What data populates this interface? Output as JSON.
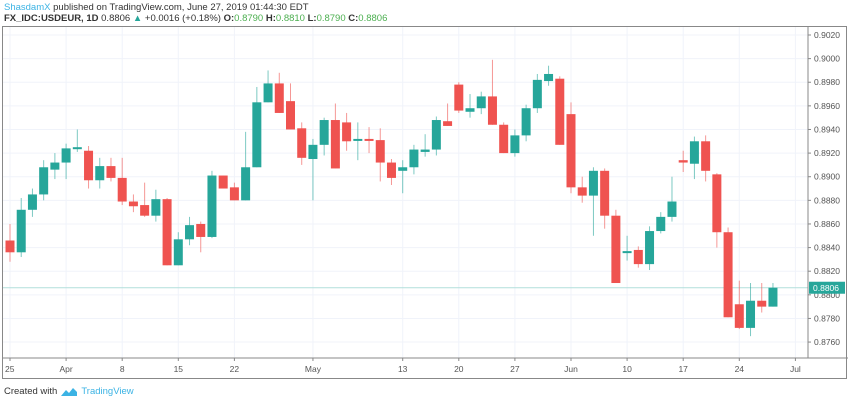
{
  "header": {
    "author": "ShasdamX",
    "published_text": " published on TradingView.com, June 27, 2019 01:44:30 EDT",
    "symbol": "FX_IDC:USDEUR, 1D",
    "last_price": "0.8806",
    "change_arrow": "▲",
    "change": "+0.0016 (+0.18%)",
    "o_label": "O:",
    "o_value": "0.8790",
    "h_label": "H:",
    "h_value": "0.8810",
    "l_label": "L:",
    "l_value": "0.8790",
    "c_label": "C:",
    "c_value": "0.8806"
  },
  "footer": {
    "created_with": "Created with",
    "brand": "TradingView"
  },
  "colors": {
    "up": "#26a69a",
    "down": "#ef5350",
    "grid": "#f0f3fa",
    "axis": "#888888",
    "text": "#555555",
    "brand": "#3bb3e4"
  },
  "chart_data": {
    "type": "candlestick",
    "title": "FX_IDC:USDEUR, 1D",
    "xlabel": "",
    "ylabel": "",
    "ylim": [
      0.8745,
      0.903
    ],
    "grid": true,
    "y_ticks": [
      "0.9020",
      "0.9000",
      "0.8980",
      "0.8960",
      "0.8940",
      "0.8920",
      "0.8900",
      "0.8880",
      "0.8860",
      "0.8840",
      "0.8820",
      "0.8800",
      "0.8780",
      "0.8760"
    ],
    "x_ticks": [
      {
        "label": "25",
        "index": 0
      },
      {
        "label": "Apr",
        "index": 5
      },
      {
        "label": "8",
        "index": 10
      },
      {
        "label": "15",
        "index": 15
      },
      {
        "label": "22",
        "index": 20
      },
      {
        "label": "May",
        "index": 27
      },
      {
        "label": "13",
        "index": 35
      },
      {
        "label": "20",
        "index": 40
      },
      {
        "label": "27",
        "index": 45
      },
      {
        "label": "Jun",
        "index": 50
      },
      {
        "label": "10",
        "index": 55
      },
      {
        "label": "17",
        "index": 60
      },
      {
        "label": "24",
        "index": 65
      },
      {
        "label": "Jul",
        "index": 70
      }
    ],
    "last_price_label": "0.8806",
    "candles": [
      [
        0.8846,
        0.886,
        0.8828,
        0.8836
      ],
      [
        0.8836,
        0.8882,
        0.8832,
        0.8872
      ],
      [
        0.8872,
        0.889,
        0.8866,
        0.8885
      ],
      [
        0.8885,
        0.8914,
        0.888,
        0.8908
      ],
      [
        0.8906,
        0.892,
        0.8898,
        0.8912
      ],
      [
        0.8912,
        0.8928,
        0.8898,
        0.8924
      ],
      [
        0.8924,
        0.894,
        0.8921,
        0.8925
      ],
      [
        0.8922,
        0.8926,
        0.889,
        0.8897
      ],
      [
        0.8897,
        0.8916,
        0.889,
        0.8909
      ],
      [
        0.8909,
        0.8916,
        0.8896,
        0.8899
      ],
      [
        0.8899,
        0.8916,
        0.8876,
        0.8879
      ],
      [
        0.8879,
        0.8885,
        0.887,
        0.8875
      ],
      [
        0.8876,
        0.8895,
        0.8866,
        0.8867
      ],
      [
        0.8867,
        0.8889,
        0.8862,
        0.8881
      ],
      [
        0.8881,
        0.8882,
        0.8825,
        0.8825
      ],
      [
        0.8825,
        0.8853,
        0.8825,
        0.8847
      ],
      [
        0.8847,
        0.8866,
        0.8842,
        0.8859
      ],
      [
        0.886,
        0.8862,
        0.8836,
        0.8849
      ],
      [
        0.8849,
        0.8905,
        0.8848,
        0.8901
      ],
      [
        0.8901,
        0.8901,
        0.889,
        0.889
      ],
      [
        0.8891,
        0.8895,
        0.888,
        0.888
      ],
      [
        0.888,
        0.8938,
        0.888,
        0.8908
      ],
      [
        0.8908,
        0.8976,
        0.8908,
        0.8963
      ],
      [
        0.8963,
        0.899,
        0.8963,
        0.8979
      ],
      [
        0.8979,
        0.8988,
        0.8954,
        0.8954
      ],
      [
        0.8964,
        0.8979,
        0.894,
        0.894
      ],
      [
        0.8941,
        0.8946,
        0.891,
        0.8916
      ],
      [
        0.8915,
        0.8932,
        0.888,
        0.8927
      ],
      [
        0.8927,
        0.895,
        0.8918,
        0.8948
      ],
      [
        0.8948,
        0.8962,
        0.8907,
        0.8907
      ],
      [
        0.8946,
        0.8954,
        0.8922,
        0.893
      ],
      [
        0.8931,
        0.8946,
        0.8914,
        0.8932
      ],
      [
        0.8932,
        0.8942,
        0.892,
        0.8931
      ],
      [
        0.8931,
        0.8941,
        0.8896,
        0.8912
      ],
      [
        0.8912,
        0.8915,
        0.8893,
        0.8899
      ],
      [
        0.8905,
        0.8914,
        0.8886,
        0.8908
      ],
      [
        0.8908,
        0.8927,
        0.8902,
        0.8923
      ],
      [
        0.8921,
        0.8936,
        0.8917,
        0.8923
      ],
      [
        0.8923,
        0.8951,
        0.8918,
        0.8948
      ],
      [
        0.8947,
        0.8962,
        0.8943,
        0.8943
      ],
      [
        0.8978,
        0.898,
        0.8954,
        0.8956
      ],
      [
        0.8955,
        0.897,
        0.895,
        0.8958
      ],
      [
        0.8958,
        0.8972,
        0.8953,
        0.8968
      ],
      [
        0.8968,
        0.8999,
        0.8944,
        0.8944
      ],
      [
        0.8944,
        0.8946,
        0.892,
        0.892
      ],
      [
        0.892,
        0.894,
        0.8917,
        0.8935
      ],
      [
        0.8935,
        0.8961,
        0.893,
        0.8958
      ],
      [
        0.8958,
        0.8987,
        0.8954,
        0.8982
      ],
      [
        0.8981,
        0.8994,
        0.8977,
        0.8987
      ],
      [
        0.8983,
        0.8985,
        0.8927,
        0.8927
      ],
      [
        0.8953,
        0.8963,
        0.8886,
        0.8891
      ],
      [
        0.8891,
        0.89,
        0.8878,
        0.8884
      ],
      [
        0.8884,
        0.8908,
        0.885,
        0.8905
      ],
      [
        0.8905,
        0.8907,
        0.8856,
        0.8867
      ],
      [
        0.8867,
        0.8872,
        0.881,
        0.881
      ],
      [
        0.8837,
        0.885,
        0.8829,
        0.8837
      ],
      [
        0.8838,
        0.8841,
        0.8823,
        0.8826
      ],
      [
        0.8826,
        0.8858,
        0.8821,
        0.8854
      ],
      [
        0.8854,
        0.887,
        0.8852,
        0.8866
      ],
      [
        0.8866,
        0.89,
        0.8862,
        0.8879
      ],
      [
        0.8914,
        0.8922,
        0.8904,
        0.8912
      ],
      [
        0.8911,
        0.8934,
        0.8898,
        0.893
      ],
      [
        0.893,
        0.8935,
        0.8896,
        0.8905
      ],
      [
        0.8902,
        0.8903,
        0.884,
        0.8853
      ],
      [
        0.8853,
        0.8857,
        0.8781,
        0.8781
      ],
      [
        0.8792,
        0.8812,
        0.8771,
        0.8772
      ],
      [
        0.8772,
        0.881,
        0.8765,
        0.8795
      ],
      [
        0.8795,
        0.881,
        0.8785,
        0.879
      ],
      [
        0.879,
        0.881,
        0.879,
        0.8806
      ]
    ],
    "candle_format": [
      "open",
      "high",
      "low",
      "close"
    ]
  }
}
